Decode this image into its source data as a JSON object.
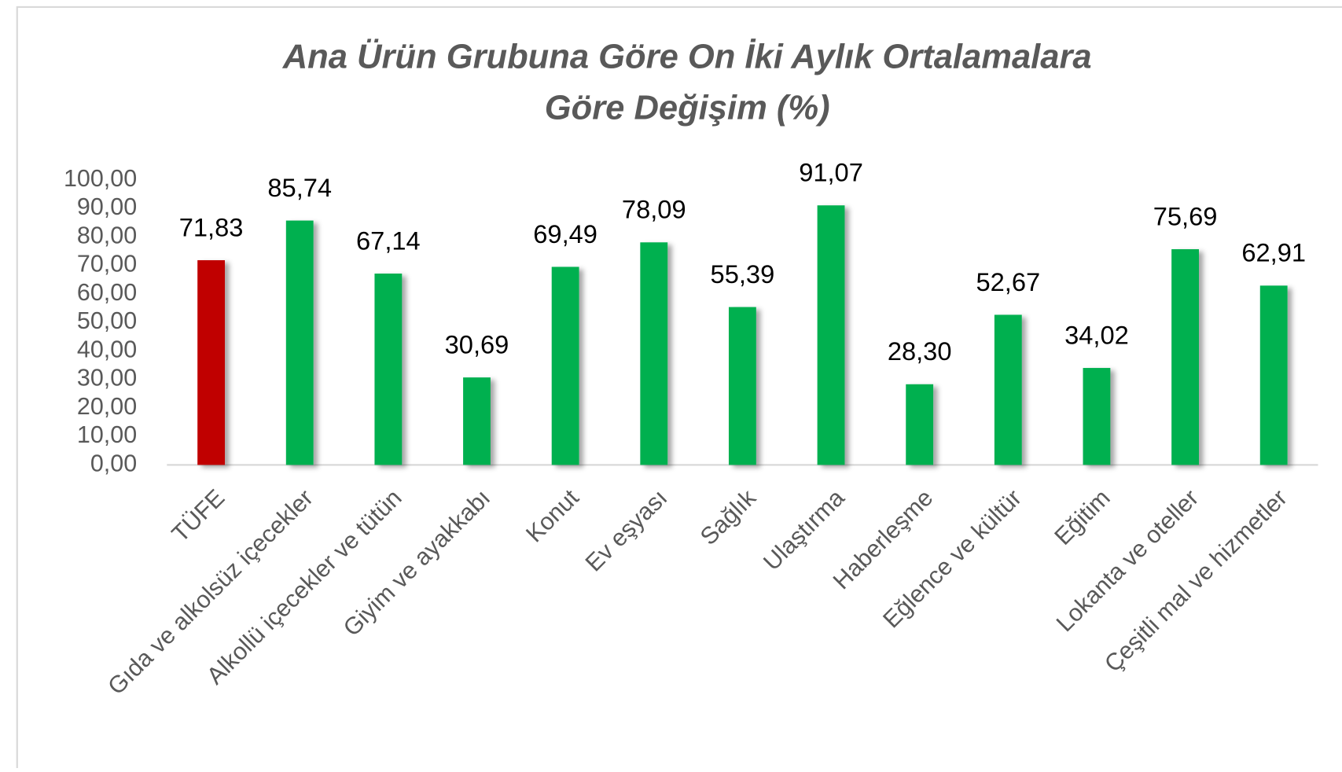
{
  "chart_data": {
    "type": "bar",
    "title": "Ana Ürün Grubuna Göre On İki Aylık Ortalamalara Göre Değişim (%)",
    "categories": [
      "TÜFE",
      "Gıda ve alkolsüz içecekler",
      "Alkollü içecekler ve tütün",
      "Giyim ve ayakkabı",
      "Konut",
      "Ev eşyası",
      "Sağlık",
      "Ulaştırma",
      "Haberleşme",
      "Eğlence ve kültür",
      "Eğitim",
      "Lokanta ve oteller",
      "Çeşitli mal ve hizmetler"
    ],
    "values": [
      71.83,
      85.74,
      67.14,
      30.69,
      69.49,
      78.09,
      55.39,
      91.07,
      28.3,
      52.67,
      34.02,
      75.69,
      62.91
    ],
    "value_labels": [
      "71,83",
      "85,74",
      "67,14",
      "30,69",
      "69,49",
      "78,09",
      "55,39",
      "91,07",
      "28,30",
      "52,67",
      "34,02",
      "75,69",
      "62,91"
    ],
    "colors": [
      "#c00000",
      "#00b050",
      "#00b050",
      "#00b050",
      "#00b050",
      "#00b050",
      "#00b050",
      "#00b050",
      "#00b050",
      "#00b050",
      "#00b050",
      "#00b050",
      "#00b050"
    ],
    "ylim": [
      0,
      100
    ],
    "yticks": [
      {
        "value": 0,
        "label": "0,00"
      },
      {
        "value": 10,
        "label": "10,00"
      },
      {
        "value": 20,
        "label": "20,00"
      },
      {
        "value": 30,
        "label": "30,00"
      },
      {
        "value": 40,
        "label": "40,00"
      },
      {
        "value": 50,
        "label": "50,00"
      },
      {
        "value": 60,
        "label": "60,00"
      },
      {
        "value": 70,
        "label": "70,00"
      },
      {
        "value": 80,
        "label": "80,00"
      },
      {
        "value": 90,
        "label": "90,00"
      },
      {
        "value": 100,
        "label": "100,00"
      }
    ],
    "grid": false
  }
}
